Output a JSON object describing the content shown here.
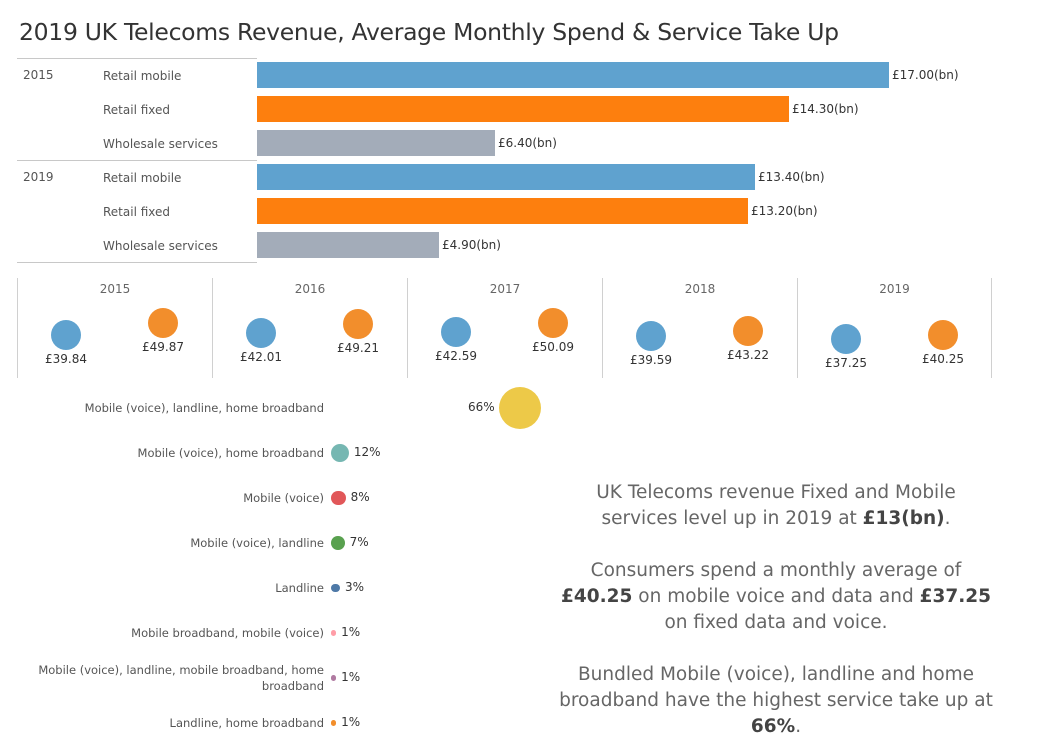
{
  "title": "2019 UK Telecoms Revenue, Average Monthly Spend &  Service Take Up",
  "colors": {
    "retail_mobile": "#5fa2cf",
    "retail_fixed": "#fd7f0e",
    "wholesale": "#a3acb9",
    "spend_a": "#5fa2cf",
    "spend_b": "#f28e2c"
  },
  "chart_data": [
    {
      "type": "bar",
      "orientation": "horizontal",
      "groups": [
        "2015",
        "2019"
      ],
      "categories": [
        "Retail mobile",
        "Retail fixed",
        "Wholesale services"
      ],
      "series": [
        {
          "group": "2015",
          "values": [
            17.0,
            14.3,
            6.4
          ],
          "labels": [
            "£17.00(bn)",
            "£14.30(bn)",
            "£6.40(bn)"
          ]
        },
        {
          "group": "2019",
          "values": [
            13.4,
            13.2,
            4.9
          ],
          "labels": [
            "£13.40(bn)",
            "£13.20(bn)",
            "£4.90(bn)"
          ]
        }
      ],
      "xlim": [
        0,
        17.0
      ]
    },
    {
      "type": "scatter",
      "years": [
        "2015",
        "2016",
        "2017",
        "2018",
        "2019"
      ],
      "series": [
        {
          "values": [
            39.84,
            42.01,
            42.59,
            39.59,
            37.25
          ],
          "labels": [
            "£39.84",
            "£42.01",
            "£42.59",
            "£39.59",
            "£37.25"
          ],
          "color": "#5fa2cf"
        },
        {
          "values": [
            49.87,
            49.21,
            50.09,
            43.22,
            40.25
          ],
          "labels": [
            "£49.87",
            "£49.21",
            "£50.09",
            "£43.22",
            "£40.25"
          ],
          "color": "#f28e2c"
        }
      ]
    },
    {
      "type": "scatter",
      "categories": [
        "Mobile (voice), landline, home broadband",
        "Mobile (voice), home broadband",
        "Mobile (voice)",
        "Mobile (voice), landline",
        "Landline",
        "Mobile broadband, mobile (voice)",
        "Mobile (voice), landline, mobile broadband, home broadband",
        "Landline, home broadband"
      ],
      "values": [
        66,
        12,
        8,
        7,
        3,
        1,
        1,
        1
      ],
      "labels": [
        "66%",
        "12%",
        "8%",
        "7%",
        "3%",
        "1%",
        "1%",
        "1%"
      ],
      "colors": [
        "#edc948",
        "#76b7b2",
        "#e15759",
        "#59a14f",
        "#4e79a7",
        "#ff9da7",
        "#b07aa1",
        "#f28e2b"
      ]
    }
  ],
  "narrative": {
    "p1_a": "UK Telecoms revenue Fixed and Mobile services level up in 2019 at ",
    "p1_b": "£13(bn)",
    "p1_c": ".",
    "p2_a": "Consumers spend a monthly average of ",
    "p2_b": "£40.25",
    "p2_c": " on mobile voice and data and ",
    "p2_d": "£37.25",
    "p2_e": " on fixed data and voice.",
    "p3_a": "Bundled Mobile (voice), landline and home broadband have the highest service take up at ",
    "p3_b": "66%",
    "p3_c": "."
  }
}
